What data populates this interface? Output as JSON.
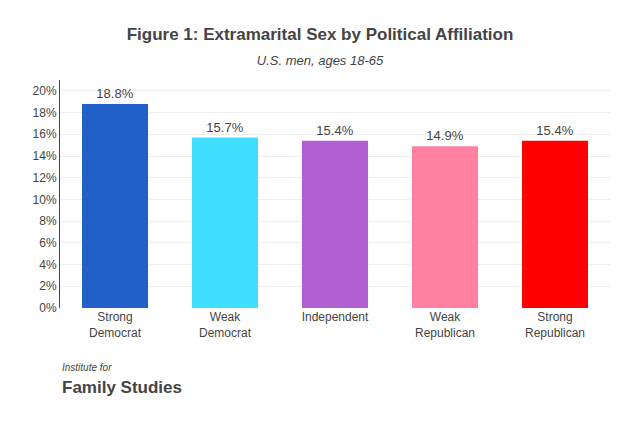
{
  "chart_data": {
    "type": "bar",
    "title": "Figure 1: Extramarital Sex by Political Affiliation",
    "subtitle": "U.S. men, ages 18-65",
    "categories": [
      "Strong\nDemocrat",
      "Weak\nDemocrat",
      "Independent",
      "Weak\nRepublican",
      "Strong\nRepublican"
    ],
    "values": [
      18.8,
      15.7,
      15.4,
      14.9,
      15.4
    ],
    "value_labels": [
      "18.8%",
      "15.7%",
      "15.4%",
      "14.9%",
      "15.4%"
    ],
    "data_labels": true,
    "colors": [
      "#2060C8",
      "#40DFFF",
      "#B060D0",
      "#FF80A0",
      "#FF0000"
    ],
    "ylim": [
      0,
      21
    ],
    "yticks": [
      {
        "value": 0,
        "label": "0%"
      },
      {
        "value": 2,
        "label": "2%"
      },
      {
        "value": 4,
        "label": "4%"
      },
      {
        "value": 6,
        "label": "6%"
      },
      {
        "value": 8,
        "label": "8%"
      },
      {
        "value": 10,
        "label": "10%"
      },
      {
        "value": 12,
        "label": "12%"
      },
      {
        "value": 14,
        "label": "14%"
      },
      {
        "value": 16,
        "label": "16%"
      },
      {
        "value": 18,
        "label": "18%"
      },
      {
        "value": 20,
        "label": "20%"
      }
    ],
    "grid": true,
    "annotations": [
      "Institute for",
      "Family Studies"
    ]
  }
}
